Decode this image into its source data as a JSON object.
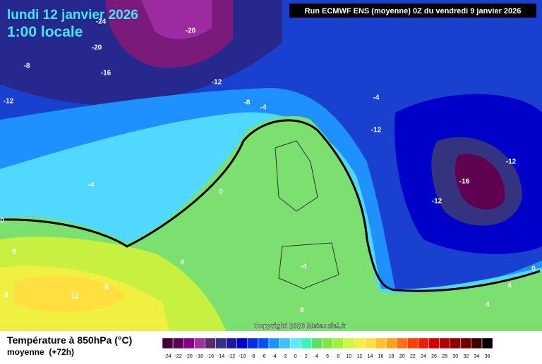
{
  "header": {
    "date": "lundi 12 janvier 2026",
    "time": "1:00 locale",
    "run": "Run ECMWF ENS (moyenne) 0Z du vendredi 9 janvier 2026"
  },
  "copyright": "Copyright 2026 Meteociel.fr",
  "contour_labels": [
    -24,
    -20,
    -20,
    -8,
    -16,
    -12,
    -12,
    -8,
    -4,
    -4,
    -12,
    -12,
    -16,
    -4,
    0,
    -12,
    0,
    8,
    4,
    -4,
    0,
    8,
    12,
    8,
    4,
    4,
    8
  ],
  "legend": {
    "title": "Température à 850hPa (°C)",
    "subtitle": "moyenne  (+72h)",
    "values": [
      -24,
      -22,
      -20,
      -18,
      -16,
      -14,
      -12,
      -10,
      -8,
      -6,
      -4,
      -2,
      0,
      2,
      4,
      6,
      8,
      10,
      12,
      14,
      16,
      18,
      20,
      22,
      24,
      26,
      28,
      30,
      32,
      34,
      36
    ],
    "colors": [
      "#3d0030",
      "#600050",
      "#880088",
      "#a030a0",
      "#5a2a6a",
      "#333380",
      "#1a1aa0",
      "#0000c8",
      "#0030e0",
      "#0050ff",
      "#1e90ff",
      "#40c0ff",
      "#60e8ff",
      "#40f0c0",
      "#60e060",
      "#80e840",
      "#a0f040",
      "#c8f840",
      "#f0f040",
      "#ffe040",
      "#ffc030",
      "#ffa020",
      "#ff7010",
      "#ff4000",
      "#e82000",
      "#d00000",
      "#b00000",
      "#900000",
      "#700000",
      "#400000",
      "#000000"
    ]
  }
}
